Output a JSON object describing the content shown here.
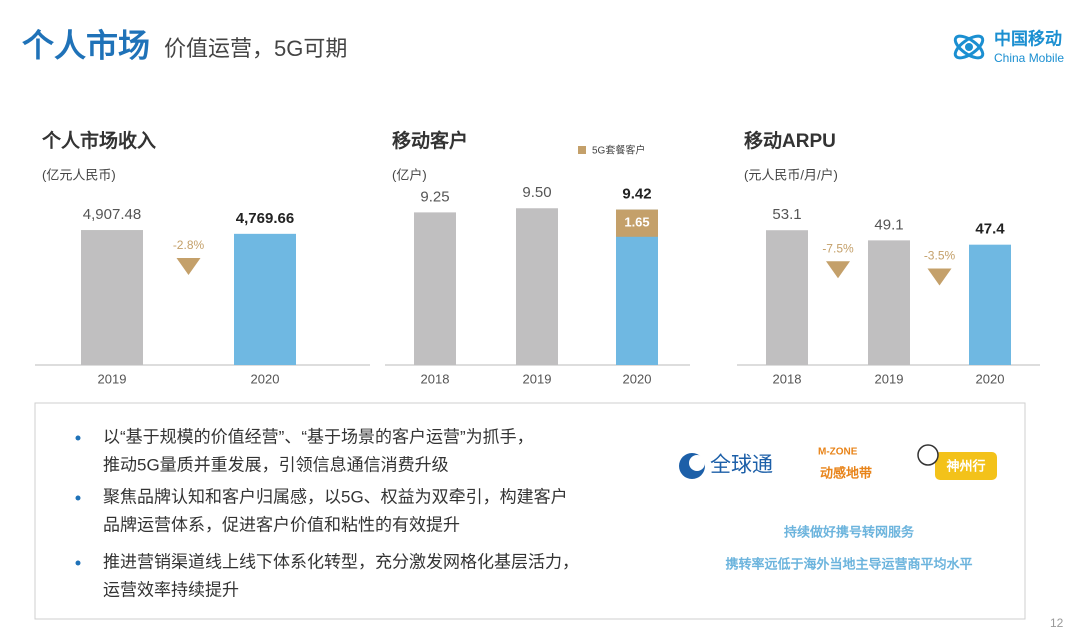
{
  "header": {
    "title": "个人市场",
    "subtitle": "价值运营，5G可期",
    "logo_cn": "中国移动",
    "logo_en": "China Mobile"
  },
  "chart_data": [
    {
      "type": "bar",
      "title": "个人市场收入",
      "unit": "(亿元人民币)",
      "categories": [
        "2019",
        "2020"
      ],
      "values": [
        4907.48,
        4769.66
      ],
      "value_labels": [
        "4,907.48",
        "4,769.66"
      ],
      "colors": [
        "#c0bfc0",
        "#6fb8e2"
      ],
      "ylim": [
        0,
        6000
      ],
      "changes": [
        "-2.8%"
      ]
    },
    {
      "type": "bar",
      "title": "移动客户",
      "unit": "(亿户)",
      "categories": [
        "2018",
        "2019",
        "2020"
      ],
      "values": [
        9.25,
        9.5,
        9.42
      ],
      "value_labels": [
        "9.25",
        "9.50",
        "9.42"
      ],
      "colors": [
        "#c0bfc0",
        "#c0bfc0",
        "#6fb8e2"
      ],
      "ylim": [
        0,
        10
      ],
      "overlay": {
        "name": "5G套餐客户",
        "color": "#c4a06a",
        "values": [
          null,
          null,
          1.65
        ]
      }
    },
    {
      "type": "bar",
      "title": "移动ARPU",
      "unit": "(元人民币/月/户)",
      "categories": [
        "2018",
        "2019",
        "2020"
      ],
      "values": [
        53.1,
        49.1,
        47.4
      ],
      "colors": [
        "#c0bfc0",
        "#c0bfc0",
        "#6fb8e2"
      ],
      "ylim": [
        0,
        65
      ],
      "changes": [
        "-7.5%",
        "-3.5%"
      ]
    }
  ],
  "bullets": [
    [
      "以“基于规模的价值经营”、“基于场景的客户运营”为抓手，",
      "推动5G量质并重发展，引领信息通信消费升级"
    ],
    [
      "聚焦品牌认知和客户归属感，以5G、权益为双牵引，构建客户",
      "品牌运营体系，促进客户价值和粘性的有效提升"
    ],
    [
      "推进营销渠道线上线下体系化转型，充分激发网格化基层活力，",
      "运营效率持续提升"
    ]
  ],
  "brands": [
    "全球通",
    "M-ZONE",
    "动感地带",
    "神州行"
  ],
  "notes": [
    "持续做好携号转网服务",
    "携转率远低于海外当地主导运营商平均水平"
  ],
  "page_number": "12"
}
